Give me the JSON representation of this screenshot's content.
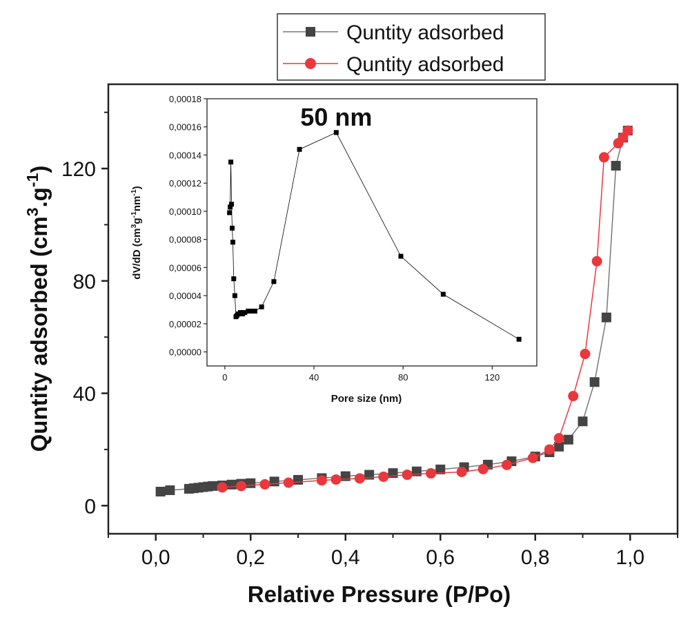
{
  "chart_data": [
    {
      "type": "scatter",
      "xlabel": "Relative Pressure (P/Po)",
      "ylabel": "Quntity adsorbed (cm3.g-1)",
      "ylabel_parts": [
        "Quntity adsorbed (cm",
        "3",
        ".g",
        "-1",
        ")"
      ],
      "xlim": [
        -0.1,
        1.1
      ],
      "ylim": [
        -10,
        150
      ],
      "xticks": [
        0.0,
        0.2,
        0.4,
        0.6,
        0.8,
        1.0
      ],
      "xtick_labels": [
        "0,0",
        "0,2",
        "0,4",
        "0,6",
        "0,8",
        "1,0"
      ],
      "yticks": [
        0,
        40,
        80,
        120
      ],
      "ytick_labels": [
        "0",
        "40",
        "80",
        "120"
      ],
      "grid": false,
      "legend": "top-center, outside plot",
      "series": [
        {
          "name": "Quntity adsorbed",
          "marker": "square",
          "color": "#444444",
          "line_color": "#777777",
          "points": [
            [
              0.01,
              5.0
            ],
            [
              0.03,
              5.5
            ],
            [
              0.07,
              6.0
            ],
            [
              0.08,
              6.2
            ],
            [
              0.09,
              6.4
            ],
            [
              0.1,
              6.6
            ],
            [
              0.11,
              6.8
            ],
            [
              0.12,
              7.0
            ],
            [
              0.14,
              7.2
            ],
            [
              0.16,
              7.5
            ],
            [
              0.18,
              7.8
            ],
            [
              0.2,
              8.0
            ],
            [
              0.25,
              8.6
            ],
            [
              0.3,
              9.2
            ],
            [
              0.35,
              9.8
            ],
            [
              0.4,
              10.5
            ],
            [
              0.45,
              11.0
            ],
            [
              0.5,
              11.6
            ],
            [
              0.55,
              12.2
            ],
            [
              0.6,
              12.9
            ],
            [
              0.65,
              13.7
            ],
            [
              0.7,
              14.6
            ],
            [
              0.75,
              15.8
            ],
            [
              0.8,
              17.5
            ],
            [
              0.83,
              19.0
            ],
            [
              0.85,
              21.0
            ],
            [
              0.87,
              23.5
            ],
            [
              0.9,
              30.0
            ],
            [
              0.925,
              44.0
            ],
            [
              0.95,
              67.0
            ],
            [
              0.97,
              121.0
            ],
            [
              0.985,
              131.0
            ],
            [
              0.995,
              133.5
            ]
          ]
        },
        {
          "name": "Quntity adsorbed",
          "marker": "circle",
          "color": "#e8383d",
          "line_color": "#e8383d",
          "points": [
            [
              0.995,
              133.5
            ],
            [
              0.985,
              131.0
            ],
            [
              0.975,
              129.0
            ],
            [
              0.945,
              124.0
            ],
            [
              0.93,
              87.0
            ],
            [
              0.905,
              54.0
            ],
            [
              0.88,
              39.0
            ],
            [
              0.85,
              24.0
            ],
            [
              0.83,
              20.0
            ],
            [
              0.795,
              17.0
            ],
            [
              0.74,
              14.5
            ],
            [
              0.69,
              13.0
            ],
            [
              0.645,
              12.0
            ],
            [
              0.58,
              11.5
            ],
            [
              0.53,
              11.0
            ],
            [
              0.48,
              10.3
            ],
            [
              0.43,
              9.7
            ],
            [
              0.38,
              9.3
            ],
            [
              0.35,
              9.0
            ],
            [
              0.28,
              8.2
            ],
            [
              0.23,
              7.6
            ],
            [
              0.18,
              7.0
            ],
            [
              0.14,
              6.5
            ]
          ]
        }
      ]
    },
    {
      "type": "line",
      "xlabel": "Pore size (nm)",
      "ylabel": "dV/dD (cm3g-1nm-1)",
      "ylabel_parts": [
        "dV/dD (cm",
        "3",
        "g",
        "-1",
        "nm",
        "-1",
        ")"
      ],
      "xlim": [
        -8,
        140
      ],
      "ylim": [
        -1e-05,
        0.00018
      ],
      "xticks": [
        0,
        40,
        80,
        120
      ],
      "xtick_labels": [
        "0",
        "40",
        "80",
        "120"
      ],
      "yticks": [
        0,
        2e-05,
        4e-05,
        6e-05,
        8e-05,
        0.0001,
        0.00012,
        0.00014,
        0.00016,
        0.00018
      ],
      "ytick_labels": [
        "0,00000",
        "0,00002",
        "0,00004",
        "0,00006",
        "0,00008",
        "0,00010",
        "0,00012",
        "0,00014",
        "0,00016",
        "0,00018"
      ],
      "annotation": "50 nm",
      "annotation_at": [
        50,
        0.000157
      ],
      "series": [
        {
          "marker": "square",
          "color": "#000000",
          "points": [
            [
              2.1,
              9.9e-05
            ],
            [
              2.4,
              0.000103
            ],
            [
              2.7,
              0.000135
            ],
            [
              3.0,
              0.000105
            ],
            [
              3.3,
              8.8e-05
            ],
            [
              3.6,
              7.8e-05
            ],
            [
              4.0,
              5.2e-05
            ],
            [
              4.5,
              4e-05
            ],
            [
              5.0,
              2.5e-05
            ],
            [
              5.5,
              2.6e-05
            ],
            [
              6.0,
              2.7e-05
            ],
            [
              7.0,
              2.8e-05
            ],
            [
              8.0,
              2.7e-05
            ],
            [
              9.0,
              2.8e-05
            ],
            [
              10.5,
              2.9e-05
            ],
            [
              12.0,
              2.9e-05
            ],
            [
              13.5,
              2.9e-05
            ],
            [
              16.5,
              3.2e-05
            ],
            [
              22.0,
              5e-05
            ],
            [
              33.5,
              0.000144
            ],
            [
              50.0,
              0.000156
            ],
            [
              79.0,
              6.8e-05
            ],
            [
              98.0,
              4.1e-05
            ],
            [
              132.0,
              9e-06
            ]
          ]
        }
      ]
    }
  ]
}
